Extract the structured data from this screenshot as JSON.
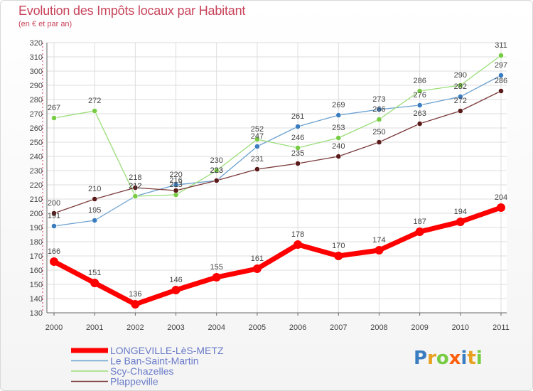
{
  "chart_data": {
    "type": "line",
    "title": "Evolution des Impôts locaux par Habitant",
    "subtitle": "(en € et par an)",
    "x": [
      "2000",
      "2001",
      "2002",
      "2003",
      "2004",
      "2005",
      "2006",
      "2007",
      "2008",
      "2009",
      "2010",
      "2011"
    ],
    "ylim": [
      130,
      320
    ],
    "yticks": [
      130,
      140,
      150,
      160,
      170,
      180,
      190,
      200,
      210,
      220,
      230,
      240,
      250,
      260,
      270,
      280,
      290,
      300,
      310,
      320
    ],
    "grid": true,
    "legend_position": "bottom-left",
    "series": [
      {
        "name": "Le Ban-Saint-Martin",
        "color": "#6ba0d0",
        "point_color": "#3a7cc0",
        "values": [
          191,
          195,
          212,
          220,
          223,
          247,
          261,
          269,
          273,
          276,
          282,
          297
        ],
        "labels": [
          "191",
          "195",
          "212",
          "220",
          "223",
          "247",
          "261",
          "269",
          "273",
          "276",
          "282",
          "297"
        ]
      },
      {
        "name": "Scy-Chazelles",
        "color": "#99dd77",
        "point_color": "#77cc44",
        "values": [
          267,
          272,
          212,
          213,
          230,
          252,
          246,
          253,
          266,
          286,
          290,
          311
        ],
        "labels": [
          "267",
          "272",
          "212",
          "213",
          "230",
          "252",
          "246",
          "253",
          "266",
          "286",
          "290",
          "311"
        ]
      },
      {
        "name": "Plappeville",
        "color": "#7a3a3a",
        "point_color": "#5a1a1a",
        "values": [
          200,
          210,
          218,
          216,
          223,
          231,
          235,
          240,
          250,
          263,
          272,
          286
        ],
        "labels": [
          "200",
          "210",
          "218",
          "216",
          "223",
          "231",
          "235",
          "240",
          "250",
          "263",
          "272",
          "286"
        ]
      },
      {
        "name": "LONGEVILLE-LèS-METZ",
        "color": "#ff0000",
        "point_color": "#ff0000",
        "values": [
          166,
          151,
          136,
          146,
          155,
          161,
          178,
          170,
          174,
          187,
          194,
          204
        ],
        "labels": [
          "166",
          "151",
          "136",
          "146",
          "155",
          "161",
          "178",
          "170",
          "174",
          "187",
          "194",
          "204"
        ]
      }
    ],
    "legend_order": [
      "LONGEVILLE-LèS-METZ",
      "Le Ban-Saint-Martin",
      "Scy-Chazelles",
      "Plappeville"
    ]
  },
  "logo": {
    "letters": [
      "P",
      "r",
      "o",
      "x",
      "i",
      "t",
      "i"
    ],
    "colors": [
      "#3a7cc0",
      "#e8a020",
      "#77cc44",
      "#ff6010",
      "#3a7cc0",
      "#e8a020",
      "#77cc44"
    ]
  }
}
